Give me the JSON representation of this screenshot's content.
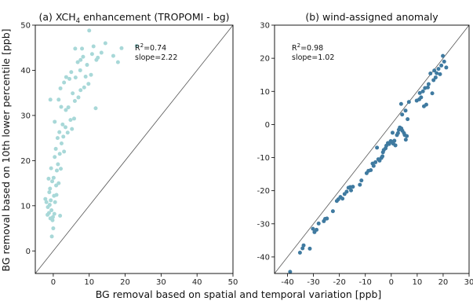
{
  "figure": {
    "xlabel": "BG removal based on spatial and temporal variation [ppb]",
    "ylabel": "BG removal based on 10th lower percentile [ppb]"
  },
  "chart_data": [
    {
      "type": "scatter",
      "title": "(a) XCH4 enhancement (TROPOMI - bg)",
      "title_parts": [
        "(a) XCH",
        "4",
        " enhancement (TROPOMI - bg)"
      ],
      "stats": {
        "r2_prefix": "R",
        "r2_sup": "2",
        "r2_value": "=0.74",
        "slope": "slope=2.22"
      },
      "point_color": "#a8d8d8",
      "xlim": [
        -5,
        50
      ],
      "ylim": [
        -5,
        50
      ],
      "xticks": [
        0,
        10,
        20,
        30,
        40,
        50
      ],
      "yticks": [
        0,
        10,
        20,
        30,
        40,
        50
      ],
      "one_to_one_line": true,
      "points": [
        [
          -2.2,
          11.5
        ],
        [
          -1.9,
          10.8
        ],
        [
          -1.5,
          9.7
        ],
        [
          -1.2,
          8.4
        ],
        [
          -1.0,
          10.2
        ],
        [
          -0.8,
          7.2
        ],
        [
          -0.5,
          9.0
        ],
        [
          -0.2,
          6.8
        ],
        [
          0.0,
          5.0
        ],
        [
          -0.4,
          3.2
        ],
        [
          -0.7,
          11.2
        ],
        [
          0.3,
          8.2
        ],
        [
          0.5,
          10.8
        ],
        [
          -1.6,
          8.0
        ],
        [
          -0.1,
          7.5
        ],
        [
          0.2,
          12.2
        ],
        [
          -0.9,
          13.8
        ],
        [
          0.8,
          14.5
        ],
        [
          -0.3,
          15.4
        ],
        [
          1.5,
          15.0
        ],
        [
          0.1,
          16.2
        ],
        [
          1.0,
          17.8
        ],
        [
          -0.6,
          18.3
        ],
        [
          1.3,
          19.2
        ],
        [
          0.4,
          20.8
        ],
        [
          1.8,
          21.5
        ],
        [
          0.7,
          22.6
        ],
        [
          3.0,
          22.0
        ],
        [
          2.3,
          23.8
        ],
        [
          1.2,
          25.0
        ],
        [
          2.8,
          25.3
        ],
        [
          1.7,
          26.3
        ],
        [
          4.0,
          26.2
        ],
        [
          3.4,
          27.4
        ],
        [
          5.2,
          27.0
        ],
        [
          2.6,
          28.0
        ],
        [
          0.4,
          28.6
        ],
        [
          4.8,
          29.0
        ],
        [
          5.8,
          29.3
        ],
        [
          3.5,
          31.2
        ],
        [
          4.2,
          31.8
        ],
        [
          2.2,
          31.9
        ],
        [
          1.5,
          33.5
        ],
        [
          6.0,
          33.2
        ],
        [
          7.0,
          34.0
        ],
        [
          5.4,
          34.9
        ],
        [
          7.6,
          35.6
        ],
        [
          8.6,
          36.2
        ],
        [
          3.0,
          37.3
        ],
        [
          4.5,
          38.1
        ],
        [
          6.2,
          38.4
        ],
        [
          5.0,
          39.6
        ],
        [
          9.0,
          38.6
        ],
        [
          10.5,
          39.0
        ],
        [
          2.0,
          36.0
        ],
        [
          6.8,
          41.8
        ],
        [
          7.6,
          42.3
        ],
        [
          9.4,
          41.2
        ],
        [
          8.3,
          43.0
        ],
        [
          10.8,
          43.6
        ],
        [
          12.0,
          42.3
        ],
        [
          13.4,
          43.9
        ],
        [
          14.5,
          46.0
        ],
        [
          11.2,
          45.3
        ],
        [
          10.0,
          48.8
        ],
        [
          16.7,
          43.2
        ],
        [
          12.4,
          42.8
        ],
        [
          18.0,
          41.8
        ],
        [
          23.2,
          45.4
        ],
        [
          19.0,
          44.9
        ],
        [
          11.8,
          31.6
        ],
        [
          -0.8,
          33.5
        ],
        [
          7.5,
          40.0
        ],
        [
          3.6,
          38.5
        ],
        [
          9.8,
          37.0
        ],
        [
          6.1,
          44.8
        ],
        [
          8.0,
          44.8
        ],
        [
          -1.3,
          16.0
        ],
        [
          0.9,
          12.4
        ],
        [
          1.9,
          7.8
        ],
        [
          -1.1,
          13.0
        ],
        [
          2.1,
          18.2
        ]
      ]
    },
    {
      "type": "scatter",
      "title": "(b) wind-assigned anomaly",
      "stats": {
        "r2_prefix": "R",
        "r2_sup": "2",
        "r2_value": "=0.98",
        "slope": "slope=1.02"
      },
      "point_color": "#3f7aa0",
      "xlim": [
        -45,
        30
      ],
      "ylim": [
        -45,
        30
      ],
      "xticks": [
        -40,
        -30,
        -20,
        -10,
        0,
        10,
        20,
        30
      ],
      "yticks": [
        -40,
        -30,
        -20,
        -10,
        0,
        10,
        20,
        30
      ],
      "one_to_one_line": true,
      "points": [
        [
          -39.0,
          -44.5
        ],
        [
          -35.2,
          -38.7
        ],
        [
          -34.2,
          -37.4
        ],
        [
          -33.8,
          -36.5
        ],
        [
          -31.4,
          -37.5
        ],
        [
          -30.2,
          -31.5
        ],
        [
          -29.6,
          -32.5
        ],
        [
          -28.8,
          -31.8
        ],
        [
          -28.0,
          -29.9
        ],
        [
          -26.0,
          -29.2
        ],
        [
          -25.5,
          -28.5
        ],
        [
          -24.8,
          -28.4
        ],
        [
          -22.5,
          -26.2
        ],
        [
          -21.0,
          -23.1
        ],
        [
          -20.4,
          -22.6
        ],
        [
          -19.6,
          -21.9
        ],
        [
          -18.8,
          -22.4
        ],
        [
          -18.0,
          -21.0
        ],
        [
          -17.2,
          -20.3
        ],
        [
          -16.5,
          -19.1
        ],
        [
          -15.8,
          -18.9
        ],
        [
          -15.5,
          -19.9
        ],
        [
          -14.8,
          -18.8
        ],
        [
          -12.1,
          -18.2
        ],
        [
          -11.5,
          -16.9
        ],
        [
          -9.5,
          -14.7
        ],
        [
          -8.8,
          -14.0
        ],
        [
          -7.9,
          -13.8
        ],
        [
          -7.2,
          -11.8
        ],
        [
          -6.8,
          -12.5
        ],
        [
          -6.1,
          -11.4
        ],
        [
          -5.0,
          -10.5
        ],
        [
          -4.5,
          -10.9
        ],
        [
          -3.8,
          -10.1
        ],
        [
          -3.4,
          -9.6
        ],
        [
          -3.2,
          -8.4
        ],
        [
          -2.9,
          -7.7
        ],
        [
          -2.2,
          -7.2
        ],
        [
          -1.9,
          -6.4
        ],
        [
          -1.3,
          -5.6
        ],
        [
          -0.8,
          -5.9
        ],
        [
          -0.2,
          -5.0
        ],
        [
          0.3,
          -5.3
        ],
        [
          0.8,
          -5.8
        ],
        [
          1.2,
          -4.9
        ],
        [
          1.6,
          -6.3
        ],
        [
          2.2,
          -3.2
        ],
        [
          2.6,
          -2.6
        ],
        [
          2.9,
          -1.6
        ],
        [
          3.3,
          -0.9
        ],
        [
          3.9,
          -1.2
        ],
        [
          4.3,
          -1.9
        ],
        [
          4.9,
          -2.6
        ],
        [
          5.2,
          -3.2
        ],
        [
          5.6,
          -4.6
        ],
        [
          6.0,
          -3.5
        ],
        [
          4.2,
          3.0
        ],
        [
          5.5,
          4.2
        ],
        [
          6.3,
          1.6
        ],
        [
          3.8,
          6.2
        ],
        [
          9.8,
          7.2
        ],
        [
          10.8,
          7.6
        ],
        [
          11.5,
          8.2
        ],
        [
          11.0,
          9.5
        ],
        [
          12.2,
          10.0
        ],
        [
          12.6,
          5.5
        ],
        [
          13.5,
          6.0
        ],
        [
          14.1,
          11.2
        ],
        [
          14.4,
          12.2
        ],
        [
          15.1,
          15.4
        ],
        [
          16.3,
          13.4
        ],
        [
          16.6,
          16.3
        ],
        [
          17.1,
          14.2
        ],
        [
          17.5,
          15.5
        ],
        [
          18.2,
          16.8
        ],
        [
          18.8,
          15.2
        ],
        [
          19.3,
          17.8
        ],
        [
          19.9,
          20.7
        ],
        [
          20.4,
          19.0
        ],
        [
          21.2,
          17.2
        ],
        [
          13.0,
          11.0
        ],
        [
          15.8,
          9.4
        ],
        [
          -5.5,
          -7.0
        ],
        [
          0.5,
          -2.5
        ],
        [
          6.8,
          6.8
        ]
      ]
    }
  ]
}
